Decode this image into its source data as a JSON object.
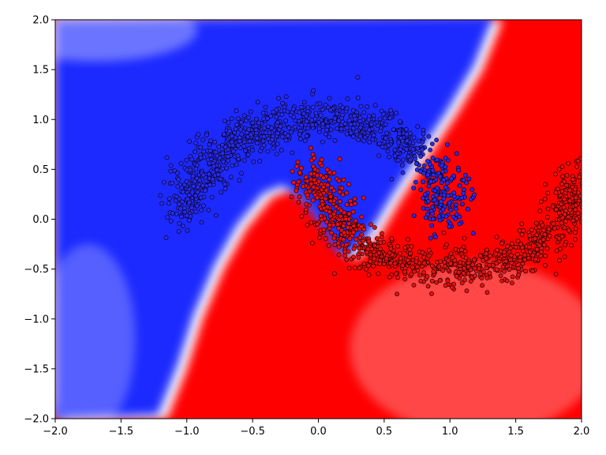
{
  "chart_data": {
    "type": "scatter",
    "title": "",
    "xlabel": "",
    "ylabel": "",
    "xlim": [
      -2.0,
      2.0
    ],
    "ylim": [
      -2.0,
      2.0
    ],
    "grid": false,
    "legend": "none",
    "x_ticks": [
      "−2.0",
      "−1.5",
      "−1.0",
      "−0.5",
      "0.0",
      "0.5",
      "1.0",
      "1.5",
      "2.0"
    ],
    "y_ticks": [
      "−2.0",
      "−1.5",
      "−1.0",
      "−0.5",
      "0.0",
      "0.5",
      "1.0",
      "1.5",
      "2.0"
    ],
    "x_tick_values": [
      -2.0,
      -1.5,
      -1.0,
      -0.5,
      0.0,
      0.5,
      1.0,
      1.5,
      2.0
    ],
    "y_tick_values": [
      -2.0,
      -1.5,
      -1.0,
      -0.5,
      0.0,
      0.5,
      1.0,
      1.5,
      2.0
    ],
    "background": "decision-surface",
    "colors": {
      "class_0": "#2a2af0",
      "class_1": "#e81010",
      "surface_blue": "#1f2bff",
      "surface_red": "#ff0000",
      "surface_mid": "#ffffff",
      "marker_edge": "#000000"
    },
    "series": [
      {
        "class": 0,
        "color": "#2a2af0",
        "shape": "upper-moon",
        "center": [
          0.0,
          0.0
        ],
        "radius": 1.0,
        "angle_range_deg": [
          0,
          180
        ],
        "noise": 0.1,
        "points": 1000
      },
      {
        "class": 1,
        "color": "#e81010",
        "shape": "lower-moon",
        "center": [
          1.0,
          0.5
        ],
        "radius": 1.0,
        "angle_range_deg": [
          180,
          360
        ],
        "noise": 0.1,
        "points": 1000
      }
    ],
    "boundary_curve": [
      [
        -1.15,
        -2.0
      ],
      [
        -1.0,
        -1.5
      ],
      [
        -0.88,
        -1.0
      ],
      [
        -0.72,
        -0.5
      ],
      [
        -0.55,
        -0.1
      ],
      [
        -0.35,
        0.22
      ],
      [
        -0.2,
        0.3
      ],
      [
        -0.05,
        0.15
      ],
      [
        0.1,
        -0.12
      ],
      [
        0.2,
        -0.35
      ],
      [
        0.3,
        -0.4
      ],
      [
        0.45,
        -0.2
      ],
      [
        0.62,
        0.18
      ],
      [
        0.85,
        0.65
      ],
      [
        1.05,
        1.05
      ],
      [
        1.25,
        1.5
      ],
      [
        1.4,
        2.0
      ]
    ]
  }
}
